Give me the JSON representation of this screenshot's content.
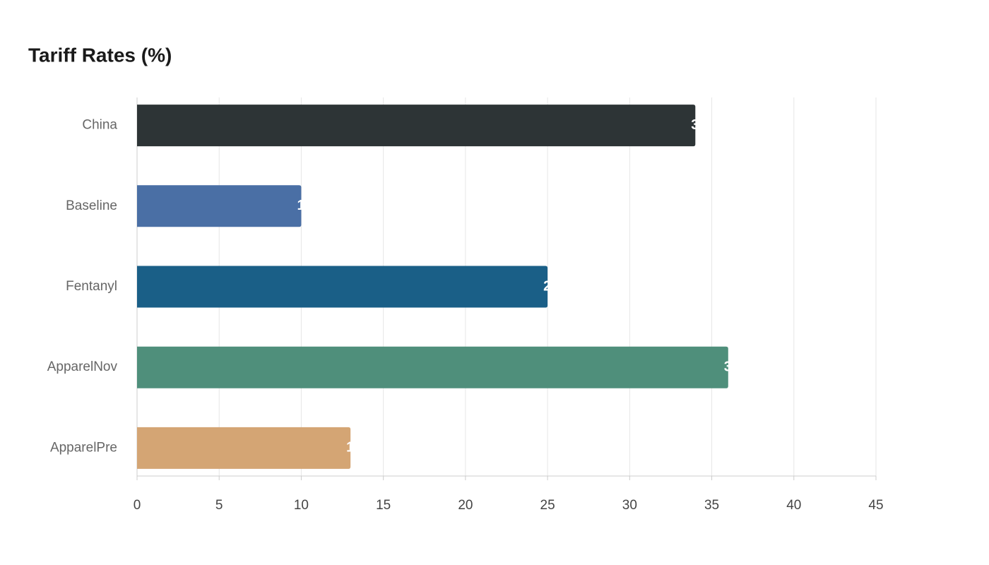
{
  "chart_data": {
    "type": "bar",
    "orientation": "horizontal",
    "title": "Tariff Rates (%)",
    "categories": [
      "China",
      "Baseline",
      "Fentanyl",
      "ApparelNov",
      "ApparelPre"
    ],
    "values": [
      34,
      10,
      25,
      36,
      13
    ],
    "colors": [
      "#2d3436",
      "#4a6fa5",
      "#1a5f87",
      "#4f8f7b",
      "#d4a574"
    ],
    "xlim": [
      0,
      45
    ],
    "xticks": [
      0,
      5,
      10,
      15,
      20,
      25,
      30,
      35,
      40,
      45
    ],
    "grid": true,
    "data_labels": true
  }
}
